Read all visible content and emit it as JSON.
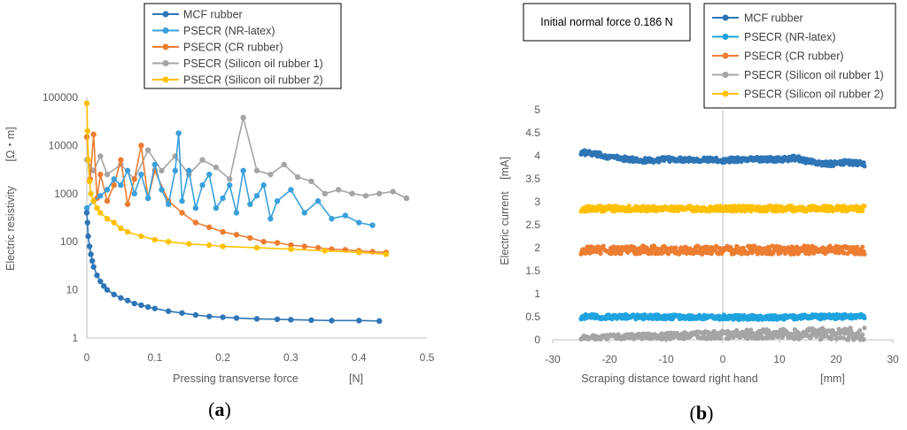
{
  "figure": {
    "label_a": "a",
    "label_b": "b"
  },
  "chart_data": [
    {
      "type": "line",
      "title": "",
      "xlabel": "Pressing transverse force",
      "xunit": "[N]",
      "ylabel": "Electric resistivity",
      "yunit": "[Ω・m]",
      "yscale": "log",
      "xlim": [
        0,
        0.5
      ],
      "ylim": [
        1,
        100000
      ],
      "x_ticks": [
        "0",
        "0.1",
        "0.2",
        "0.3",
        "0.4",
        "0.5"
      ],
      "y_ticks": [
        "1",
        "10",
        "100",
        "1000",
        "10000",
        "100000"
      ],
      "legend_position": "top-center",
      "series": [
        {
          "name": "MCF rubber",
          "color": "#2E75B6",
          "x": [
            0.0,
            0.001,
            0.002,
            0.004,
            0.006,
            0.008,
            0.01,
            0.015,
            0.02,
            0.025,
            0.03,
            0.04,
            0.05,
            0.06,
            0.07,
            0.08,
            0.09,
            0.1,
            0.12,
            0.14,
            0.16,
            0.18,
            0.2,
            0.22,
            0.25,
            0.28,
            0.3,
            0.33,
            0.36,
            0.4,
            0.43
          ],
          "y": [
            400,
            250,
            130,
            80,
            55,
            40,
            30,
            20,
            15,
            12,
            10,
            8,
            6.8,
            6,
            5.2,
            4.8,
            4.4,
            4.1,
            3.6,
            3.3,
            3.0,
            2.8,
            2.7,
            2.6,
            2.5,
            2.45,
            2.4,
            2.35,
            2.3,
            2.3,
            2.25
          ]
        },
        {
          "name": "PSECR (NR-latex)",
          "color": "#3AA0DB",
          "x": [
            0.0,
            0.01,
            0.02,
            0.03,
            0.04,
            0.05,
            0.06,
            0.07,
            0.08,
            0.09,
            0.1,
            0.11,
            0.12,
            0.13,
            0.135,
            0.14,
            0.15,
            0.16,
            0.17,
            0.18,
            0.19,
            0.2,
            0.21,
            0.22,
            0.23,
            0.24,
            0.25,
            0.26,
            0.27,
            0.28,
            0.3,
            0.32,
            0.34,
            0.36,
            0.38,
            0.4,
            0.42
          ],
          "y": [
            500,
            700,
            900,
            1200,
            2000,
            1500,
            3000,
            1000,
            2500,
            800,
            4000,
            1200,
            600,
            3000,
            18000,
            700,
            3000,
            500,
            1500,
            2500,
            500,
            800,
            1500,
            400,
            3000,
            600,
            900,
            1500,
            300,
            700,
            1200,
            400,
            700,
            300,
            350,
            250,
            220
          ]
        },
        {
          "name": "PSECR (CR rubber)",
          "color": "#ED7D31",
          "x": [
            0.0,
            0.005,
            0.01,
            0.015,
            0.02,
            0.03,
            0.04,
            0.05,
            0.06,
            0.07,
            0.08,
            0.09,
            0.1,
            0.12,
            0.14,
            0.16,
            0.18,
            0.2,
            0.22,
            0.24,
            0.26,
            0.28,
            0.3,
            0.32,
            0.34,
            0.36,
            0.38,
            0.4,
            0.42,
            0.44
          ],
          "y": [
            15000,
            2000,
            17000,
            800,
            2500,
            700,
            1500,
            5000,
            600,
            2000,
            10000,
            800,
            3000,
            700,
            400,
            250,
            200,
            160,
            140,
            120,
            100,
            95,
            85,
            80,
            75,
            70,
            68,
            65,
            62,
            60
          ]
        },
        {
          "name": "PSECR (Silicon oil rubber 1)",
          "color": "#A5A5A5",
          "x": [
            0.0,
            0.01,
            0.02,
            0.03,
            0.05,
            0.07,
            0.09,
            0.11,
            0.13,
            0.15,
            0.17,
            0.19,
            0.21,
            0.23,
            0.25,
            0.27,
            0.29,
            0.31,
            0.33,
            0.35,
            0.37,
            0.39,
            0.41,
            0.43,
            0.45,
            0.47
          ],
          "y": [
            5000,
            3000,
            6000,
            2500,
            4000,
            2000,
            8000,
            3000,
            6000,
            2500,
            5000,
            3500,
            2000,
            38000,
            3000,
            2500,
            4000,
            2200,
            1800,
            1000,
            1200,
            1000,
            900,
            1000,
            1100,
            800
          ]
        },
        {
          "name": "PSECR (Silicon oil rubber 2)",
          "color": "#FFC000",
          "x": [
            0.0,
            0.001,
            0.002,
            0.004,
            0.006,
            0.01,
            0.015,
            0.02,
            0.03,
            0.04,
            0.05,
            0.06,
            0.08,
            0.1,
            0.12,
            0.15,
            0.18,
            0.2,
            0.25,
            0.3,
            0.35,
            0.4,
            0.44
          ],
          "y": [
            75000,
            20000,
            5000,
            1800,
            1000,
            700,
            500,
            400,
            300,
            250,
            190,
            160,
            130,
            110,
            100,
            90,
            85,
            80,
            75,
            70,
            65,
            60,
            55
          ]
        }
      ]
    },
    {
      "type": "scatter",
      "title": "",
      "annotation": "Initial normal force 0.186  N",
      "xlabel": "Scraping distance toward right hand",
      "xunit": "[mm]",
      "ylabel": "Electric current",
      "yunit": "[mA]",
      "xlim": [
        -30,
        30
      ],
      "ylim": [
        0,
        5
      ],
      "x_ticks": [
        "-30",
        "-20",
        "-10",
        "0",
        "10",
        "20",
        "30"
      ],
      "y_ticks": [
        "0",
        "0.5",
        "1",
        "1.5",
        "2",
        "2.5",
        "3",
        "3.5",
        "4",
        "4.5",
        "5"
      ],
      "legend_position": "top-right",
      "series": [
        {
          "name": "MCF rubber",
          "color": "#2E75B6",
          "x": [
            -25,
            -22,
            -20,
            -17,
            -15,
            -12,
            -10,
            -5,
            0,
            5,
            10,
            13,
            15,
            18,
            20,
            22,
            25
          ],
          "y": [
            4.08,
            4.02,
            3.98,
            3.93,
            3.9,
            3.9,
            3.92,
            3.92,
            3.9,
            3.93,
            3.92,
            3.95,
            3.88,
            3.82,
            3.83,
            3.86,
            3.82
          ]
        },
        {
          "name": "PSECR (NR-latex)",
          "color": "#1FA3DE",
          "x": [
            -25,
            -20,
            -15,
            -10,
            -5,
            0,
            5,
            10,
            15,
            20,
            25
          ],
          "y": [
            0.5,
            0.5,
            0.5,
            0.49,
            0.5,
            0.49,
            0.48,
            0.49,
            0.5,
            0.5,
            0.52
          ]
        },
        {
          "name": "PSECR (CR rubber)",
          "color": "#ED7D31",
          "x": [
            -25,
            -20,
            -15,
            -10,
            -5,
            0,
            5,
            10,
            15,
            20,
            25
          ],
          "y": [
            1.95,
            1.95,
            1.95,
            1.95,
            1.95,
            1.95,
            1.95,
            1.95,
            1.95,
            1.95,
            1.95
          ]
        },
        {
          "name": "PSECR (Silicon oil rubber 1)",
          "color": "#A5A5A5",
          "x": [
            -25,
            -20,
            -15,
            -10,
            -5,
            0,
            5,
            10,
            15,
            20,
            25
          ],
          "y": [
            0.05,
            0.06,
            0.07,
            0.08,
            0.1,
            0.1,
            0.12,
            0.12,
            0.13,
            0.13,
            0.12
          ]
        },
        {
          "name": "PSECR (Silicon oil rubber 2)",
          "color": "#FFC000",
          "x": [
            -25,
            -20,
            -15,
            -10,
            -5,
            0,
            5,
            10,
            15,
            20,
            25
          ],
          "y": [
            2.85,
            2.85,
            2.85,
            2.85,
            2.85,
            2.85,
            2.85,
            2.85,
            2.85,
            2.85,
            2.85
          ]
        }
      ]
    }
  ]
}
